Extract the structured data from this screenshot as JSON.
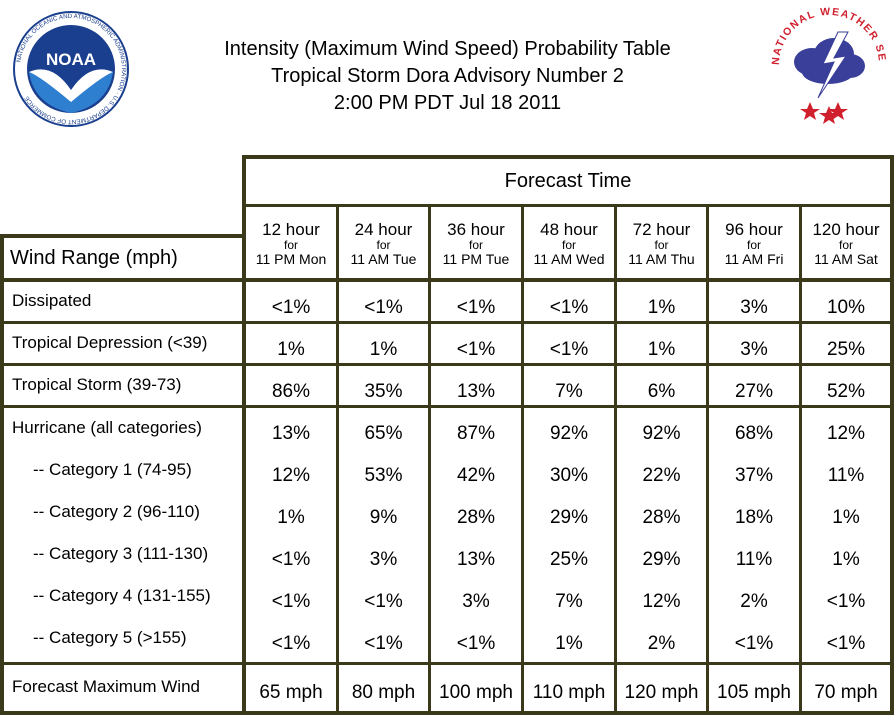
{
  "title": {
    "line1": "Intensity (Maximum Wind Speed) Probability Table",
    "line2": "Tropical Storm Dora Advisory Number 2",
    "line3": "2:00 PM PDT Jul 18 2011"
  },
  "logos": {
    "noaa": {
      "text": "NOAA",
      "ring_text": "NATIONAL OCEANIC AND ATMOSPHERIC ADMINISTRATION · U.S. DEPARTMENT OF COMMERCE"
    },
    "nws": {
      "ring_text": "NATIONAL WEATHER SERVICE"
    }
  },
  "table": {
    "forecast_time_label": "Forecast Time",
    "wind_range_label": "Wind Range (mph)",
    "columns": [
      {
        "hour": "12 hour",
        "for": "for",
        "day": "11 PM Mon"
      },
      {
        "hour": "24 hour",
        "for": "for",
        "day": "11 AM Tue"
      },
      {
        "hour": "36 hour",
        "for": "for",
        "day": "11 PM Tue"
      },
      {
        "hour": "48 hour",
        "for": "for",
        "day": "11 AM Wed"
      },
      {
        "hour": "72 hour",
        "for": "for",
        "day": "11 AM Thu"
      },
      {
        "hour": "96 hour",
        "for": "for",
        "day": "11 AM Fri"
      },
      {
        "hour": "120 hour",
        "for": "for",
        "day": "11 AM Sat"
      }
    ],
    "rows": [
      {
        "label": "Dissipated",
        "values": [
          "<1%",
          "<1%",
          "<1%",
          "<1%",
          "1%",
          "3%",
          "10%"
        ]
      },
      {
        "label": "Tropical Depression (<39)",
        "values": [
          "1%",
          "1%",
          "<1%",
          "<1%",
          "1%",
          "3%",
          "25%"
        ]
      },
      {
        "label": "Tropical Storm (39-73)",
        "values": [
          "86%",
          "35%",
          "13%",
          "7%",
          "6%",
          "27%",
          "52%"
        ]
      },
      {
        "label": "Hurricane (all categories)",
        "values": [
          "13%",
          "65%",
          "87%",
          "92%",
          "92%",
          "68%",
          "12%"
        ]
      },
      {
        "label": "-- Category 1 (74-95)",
        "values": [
          "12%",
          "53%",
          "42%",
          "30%",
          "22%",
          "37%",
          "11%"
        ]
      },
      {
        "label": "-- Category 2 (96-110)",
        "values": [
          "1%",
          "9%",
          "28%",
          "29%",
          "28%",
          "18%",
          "1%"
        ]
      },
      {
        "label": "-- Category 3 (111-130)",
        "values": [
          "<1%",
          "3%",
          "13%",
          "25%",
          "29%",
          "11%",
          "1%"
        ]
      },
      {
        "label": "-- Category 4 (131-155)",
        "values": [
          "<1%",
          "<1%",
          "3%",
          "7%",
          "12%",
          "2%",
          "<1%"
        ]
      },
      {
        "label": "-- Category 5 (>155)",
        "values": [
          "<1%",
          "<1%",
          "<1%",
          "1%",
          "2%",
          "<1%",
          "<1%"
        ]
      },
      {
        "label": "Forecast Maximum Wind",
        "values": [
          "65 mph",
          "80 mph",
          "100 mph",
          "110 mph",
          "120 mph",
          "105 mph",
          "70 mph"
        ]
      }
    ]
  },
  "colors": {
    "border": "#3a3a1a",
    "noaa_blue": "#1b3f8f",
    "nws_red": "#d0202e",
    "nws_cloud": "#3a3f9a"
  }
}
